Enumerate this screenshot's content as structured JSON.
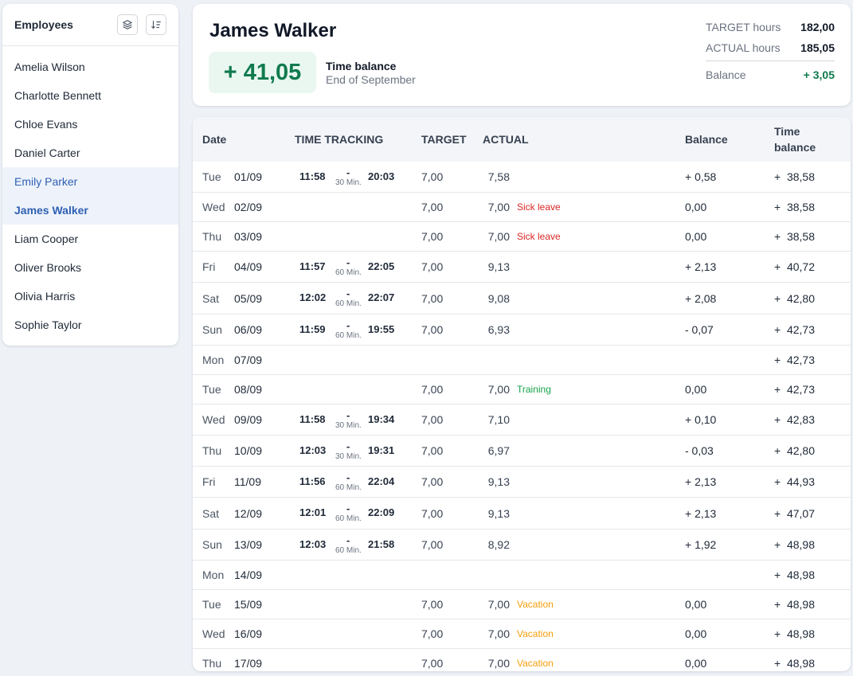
{
  "sidebar": {
    "title": "Employees",
    "icons": {
      "layers": "layers-icon",
      "sort": "sort-icon"
    },
    "employees": [
      "Amelia Wilson",
      "Charlotte Bennett",
      "Chloe Evans",
      "Daniel Carter",
      "Emily Parker",
      "James Walker",
      "Liam Cooper",
      "Oliver Brooks",
      "Olivia Harris",
      "Sophie Taylor"
    ],
    "hovered": "Emily Parker",
    "selected": "James Walker"
  },
  "summary": {
    "name": "James Walker",
    "time_balance_value": "+ 41,05",
    "time_balance_label": "Time balance",
    "time_balance_period": "End of September",
    "target_label": "TARGET hours",
    "target_value": "182,00",
    "actual_label": "ACTUAL hours",
    "actual_value": "185,05",
    "balance_label": "Balance",
    "balance_value": "+ 3,05"
  },
  "table": {
    "headers": {
      "date": "Date",
      "time_tracking": "TIME TRACKING",
      "target": "TARGET",
      "actual": "ACTUAL",
      "balance": "Balance",
      "time_balance_line1": "Time",
      "time_balance_line2": "balance"
    },
    "rows": [
      {
        "day": "Tue",
        "date": "01/09",
        "start": "11:58",
        "brk": "30 Min.",
        "end": "20:03",
        "target": "7,00",
        "actual": "7,58",
        "tag": "",
        "tagType": "",
        "balance": "+ 0,58",
        "tbal": "+  38,58"
      },
      {
        "day": "Wed",
        "date": "02/09",
        "start": "",
        "brk": "",
        "end": "",
        "target": "7,00",
        "actual": "7,00",
        "tag": "Sick leave",
        "tagType": "sick",
        "balance": "0,00",
        "tbal": "+  38,58"
      },
      {
        "day": "Thu",
        "date": "03/09",
        "start": "",
        "brk": "",
        "end": "",
        "target": "7,00",
        "actual": "7,00",
        "tag": "Sick leave",
        "tagType": "sick",
        "balance": "0,00",
        "tbal": "+  38,58"
      },
      {
        "day": "Fri",
        "date": "04/09",
        "start": "11:57",
        "brk": "60 Min.",
        "end": "22:05",
        "target": "7,00",
        "actual": "9,13",
        "tag": "",
        "tagType": "",
        "balance": "+ 2,13",
        "tbal": "+  40,72"
      },
      {
        "day": "Sat",
        "date": "05/09",
        "start": "12:02",
        "brk": "60 Min.",
        "end": "22:07",
        "target": "7,00",
        "actual": "9,08",
        "tag": "",
        "tagType": "",
        "balance": "+ 2,08",
        "tbal": "+  42,80"
      },
      {
        "day": "Sun",
        "date": "06/09",
        "start": "11:59",
        "brk": "60 Min.",
        "end": "19:55",
        "target": "7,00",
        "actual": "6,93",
        "tag": "",
        "tagType": "",
        "balance": "- 0,07",
        "tbal": "+  42,73"
      },
      {
        "day": "Mon",
        "date": "07/09",
        "start": "",
        "brk": "",
        "end": "",
        "target": "",
        "actual": "",
        "tag": "",
        "tagType": "",
        "balance": "",
        "tbal": "+  42,73"
      },
      {
        "day": "Tue",
        "date": "08/09",
        "start": "",
        "brk": "",
        "end": "",
        "target": "7,00",
        "actual": "7,00",
        "tag": "Training",
        "tagType": "training",
        "balance": "0,00",
        "tbal": "+  42,73"
      },
      {
        "day": "Wed",
        "date": "09/09",
        "start": "11:58",
        "brk": "30 Min.",
        "end": "19:34",
        "target": "7,00",
        "actual": "7,10",
        "tag": "",
        "tagType": "",
        "balance": "+ 0,10",
        "tbal": "+  42,83"
      },
      {
        "day": "Thu",
        "date": "10/09",
        "start": "12:03",
        "brk": "30 Min.",
        "end": "19:31",
        "target": "7,00",
        "actual": "6,97",
        "tag": "",
        "tagType": "",
        "balance": "- 0,03",
        "tbal": "+  42,80"
      },
      {
        "day": "Fri",
        "date": "11/09",
        "start": "11:56",
        "brk": "60 Min.",
        "end": "22:04",
        "target": "7,00",
        "actual": "9,13",
        "tag": "",
        "tagType": "",
        "balance": "+ 2,13",
        "tbal": "+  44,93"
      },
      {
        "day": "Sat",
        "date": "12/09",
        "start": "12:01",
        "brk": "60 Min.",
        "end": "22:09",
        "target": "7,00",
        "actual": "9,13",
        "tag": "",
        "tagType": "",
        "balance": "+ 2,13",
        "tbal": "+  47,07"
      },
      {
        "day": "Sun",
        "date": "13/09",
        "start": "12:03",
        "brk": "60 Min.",
        "end": "21:58",
        "target": "7,00",
        "actual": "8,92",
        "tag": "",
        "tagType": "",
        "balance": "+ 1,92",
        "tbal": "+  48,98"
      },
      {
        "day": "Mon",
        "date": "14/09",
        "start": "",
        "brk": "",
        "end": "",
        "target": "",
        "actual": "",
        "tag": "",
        "tagType": "",
        "balance": "",
        "tbal": "+  48,98"
      },
      {
        "day": "Tue",
        "date": "15/09",
        "start": "",
        "brk": "",
        "end": "",
        "target": "7,00",
        "actual": "7,00",
        "tag": "Vacation",
        "tagType": "vacation",
        "balance": "0,00",
        "tbal": "+  48,98"
      },
      {
        "day": "Wed",
        "date": "16/09",
        "start": "",
        "brk": "",
        "end": "",
        "target": "7,00",
        "actual": "7,00",
        "tag": "Vacation",
        "tagType": "vacation",
        "balance": "0,00",
        "tbal": "+  48,98"
      },
      {
        "day": "Thu",
        "date": "17/09",
        "start": "",
        "brk": "",
        "end": "",
        "target": "7,00",
        "actual": "7,00",
        "tag": "Vacation",
        "tagType": "vacation",
        "balance": "0,00",
        "tbal": "+  48,98"
      }
    ]
  }
}
